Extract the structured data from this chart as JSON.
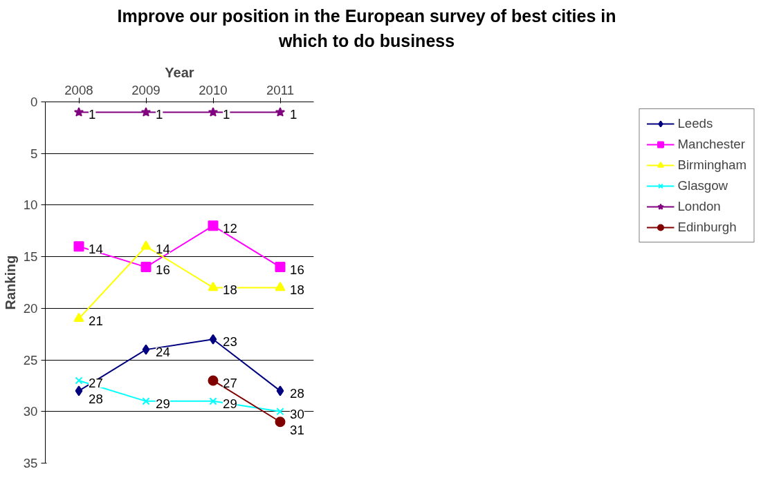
{
  "chart_data": {
    "type": "line",
    "title": "Improve our position in the European survey of best cities in which to do business",
    "xlabel": "Year",
    "ylabel": "Ranking",
    "categories": [
      "2008",
      "2009",
      "2010",
      "2011"
    ],
    "ylim": [
      35,
      0
    ],
    "yticks": [
      0,
      5,
      10,
      15,
      20,
      25,
      30,
      35
    ],
    "grid": "y",
    "legend": "right",
    "data_labels": true,
    "series": [
      {
        "name": "Leeds",
        "color": "#000080",
        "marker": "diamond",
        "values": [
          28,
          24,
          23,
          28
        ]
      },
      {
        "name": "Manchester",
        "color": "#ff00ff",
        "marker": "square",
        "values": [
          14,
          16,
          12,
          16
        ]
      },
      {
        "name": "Birmingham",
        "color": "#ffff00",
        "marker": "triangle",
        "values": [
          21,
          14,
          18,
          18
        ]
      },
      {
        "name": "Glasgow",
        "color": "#00ffff",
        "marker": "cross",
        "values": [
          27,
          29,
          29,
          30
        ]
      },
      {
        "name": "London",
        "color": "#800080",
        "marker": "star",
        "values": [
          1,
          1,
          1,
          1
        ]
      },
      {
        "name": "Edinburgh",
        "color": "#800000",
        "marker": "circle",
        "values": [
          null,
          null,
          27,
          31
        ]
      }
    ]
  }
}
